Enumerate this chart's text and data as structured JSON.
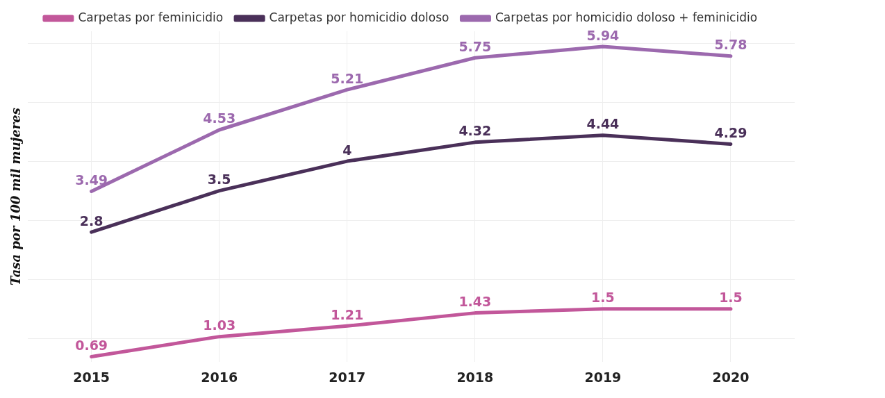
{
  "chart_data": {
    "type": "line",
    "ylabel": "Tasa por 100 mil mujeres",
    "categories": [
      "2015",
      "2016",
      "2017",
      "2018",
      "2019",
      "2020"
    ],
    "series": [
      {
        "name": "Carpetas por feminicidio",
        "color": "#c2579a",
        "values": [
          0.69,
          1.03,
          1.21,
          1.43,
          1.5,
          1.5
        ]
      },
      {
        "name": "Carpetas por homicidio doloso",
        "color": "#4a3059",
        "values": [
          2.8,
          3.5,
          4,
          4.32,
          4.44,
          4.29
        ]
      },
      {
        "name": "Carpetas por homicidio doloso + feminicidio",
        "color": "#9c69ae",
        "values": [
          3.49,
          4.53,
          5.21,
          5.75,
          5.94,
          5.78
        ]
      }
    ],
    "ylim": [
      0.6,
      6.2
    ],
    "yticks": [
      {
        "value": 1,
        "label": null
      },
      {
        "value": 2,
        "label": null
      },
      {
        "value": 3,
        "label": null
      },
      {
        "value": 4,
        "label": null
      },
      {
        "value": 5,
        "label": null
      },
      {
        "value": 6,
        "label": null
      }
    ],
    "tick_labels": "x",
    "grid": true,
    "legend": "top",
    "marker": "none",
    "line_style": "solid",
    "data_labels": true
  }
}
